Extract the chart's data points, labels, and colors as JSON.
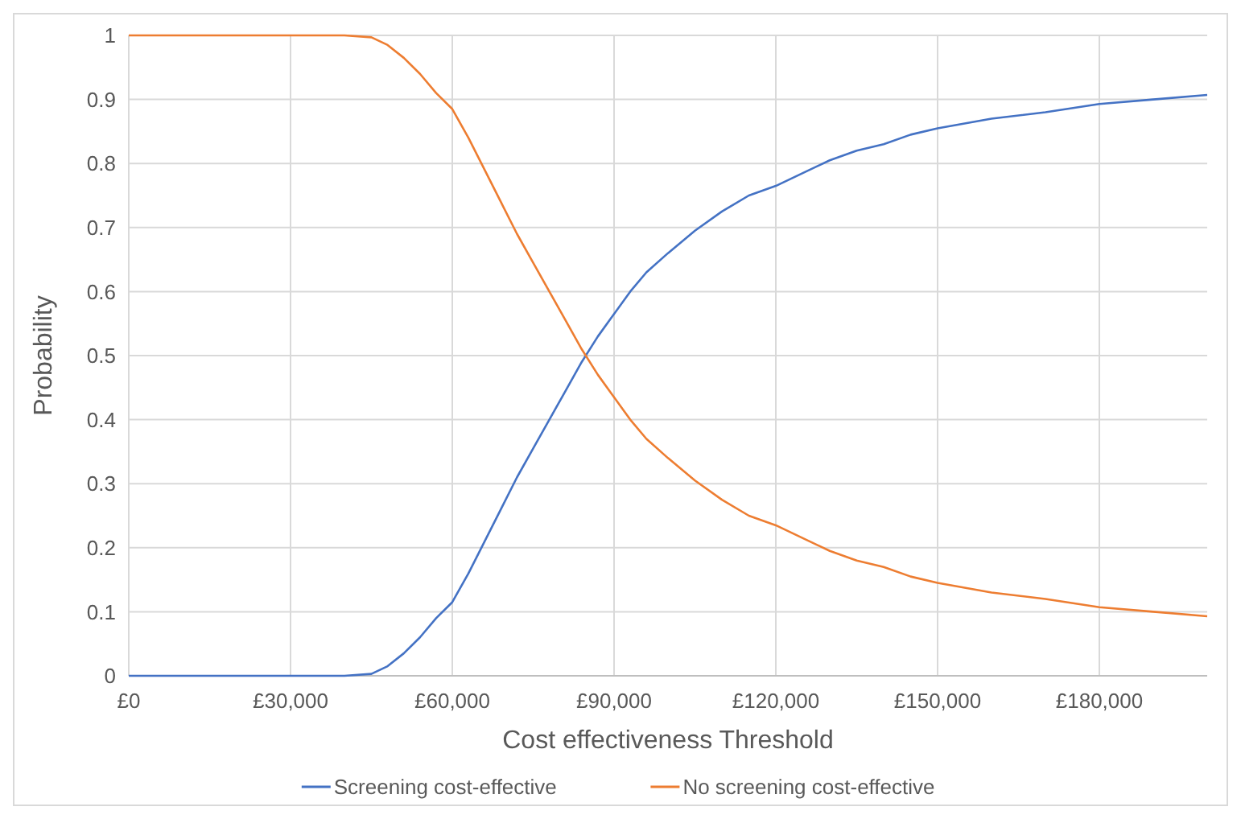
{
  "chart_data": {
    "type": "line",
    "xlabel": "Cost effectiveness Threshold",
    "ylabel": "Probability",
    "x": [
      0,
      10000,
      20000,
      30000,
      40000,
      45000,
      48000,
      51000,
      54000,
      57000,
      60000,
      63000,
      66000,
      69000,
      72000,
      75000,
      78000,
      81000,
      84000,
      87000,
      90000,
      93000,
      96000,
      100000,
      105000,
      110000,
      115000,
      120000,
      125000,
      130000,
      135000,
      140000,
      145000,
      150000,
      160000,
      170000,
      180000,
      190000,
      200000
    ],
    "series": [
      {
        "name": "Screening cost-effective",
        "color": "#4472c4",
        "values": [
          0,
          0,
          0,
          0,
          0,
          0.003,
          0.015,
          0.035,
          0.06,
          0.09,
          0.115,
          0.16,
          0.21,
          0.26,
          0.31,
          0.355,
          0.4,
          0.445,
          0.49,
          0.53,
          0.565,
          0.6,
          0.63,
          0.66,
          0.695,
          0.725,
          0.75,
          0.765,
          0.785,
          0.805,
          0.82,
          0.83,
          0.845,
          0.855,
          0.87,
          0.88,
          0.893,
          0.9,
          0.907
        ]
      },
      {
        "name": "No screening cost-effective",
        "color": "#ed7d31",
        "values": [
          1,
          1,
          1,
          1,
          1,
          0.997,
          0.985,
          0.965,
          0.94,
          0.91,
          0.885,
          0.84,
          0.79,
          0.74,
          0.69,
          0.645,
          0.6,
          0.555,
          0.51,
          0.47,
          0.435,
          0.4,
          0.37,
          0.34,
          0.305,
          0.275,
          0.25,
          0.235,
          0.215,
          0.195,
          0.18,
          0.17,
          0.155,
          0.145,
          0.13,
          0.12,
          0.107,
          0.1,
          0.093
        ]
      }
    ],
    "xlim": [
      0,
      200000
    ],
    "xticks": [
      {
        "value": 0,
        "label": "£0"
      },
      {
        "value": 30000,
        "label": "£30,000"
      },
      {
        "value": 60000,
        "label": "£60,000"
      },
      {
        "value": 90000,
        "label": "£90,000"
      },
      {
        "value": 120000,
        "label": "£120,000"
      },
      {
        "value": 150000,
        "label": "£150,000"
      },
      {
        "value": 180000,
        "label": "£180,000"
      }
    ],
    "ylim": [
      0,
      1
    ],
    "yticks": [
      0,
      0.1,
      0.2,
      0.3,
      0.4,
      0.5,
      0.6,
      0.7,
      0.8,
      0.9,
      1
    ],
    "grid": true,
    "legend": "bottom",
    "marker": "none",
    "line_style": "solid"
  }
}
